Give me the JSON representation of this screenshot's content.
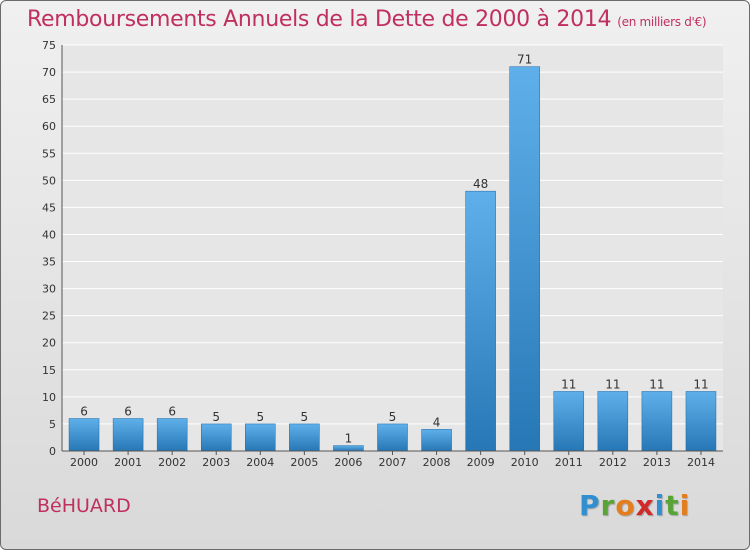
{
  "title": "Remboursements Annuels de la Dette de 2000 à 2014",
  "subtitle": "(en milliers d'€)",
  "commune": "BéHUARD",
  "brand": {
    "letters": [
      "P",
      "r",
      "o",
      "x",
      "i",
      "t",
      "i"
    ],
    "colors": [
      "#2f8fd1",
      "#5aa437",
      "#e47d1c",
      "#d02a2a",
      "#2f8fd1",
      "#5aa437",
      "#e47d1c"
    ]
  },
  "colors": {
    "title": "#c0305e",
    "bar_top": "#5fb0ea",
    "bar_bottom": "#2677b5",
    "grid": "#ffffff",
    "background": "#e6e6e6"
  },
  "chart_data": {
    "type": "bar",
    "title": "Remboursements Annuels de la Dette de 2000 à 2014",
    "categories": [
      "2000",
      "2001",
      "2002",
      "2003",
      "2004",
      "2005",
      "2006",
      "2007",
      "2008",
      "2009",
      "2010",
      "2011",
      "2012",
      "2013",
      "2014"
    ],
    "values": [
      6,
      6,
      6,
      5,
      5,
      5,
      1,
      5,
      4,
      48,
      71,
      11,
      11,
      11,
      11
    ],
    "ylim": [
      0,
      75
    ],
    "yticks": [
      0,
      5,
      10,
      15,
      20,
      25,
      30,
      35,
      40,
      45,
      50,
      55,
      60,
      65,
      70,
      75
    ],
    "grid": true,
    "data_labels": true
  }
}
